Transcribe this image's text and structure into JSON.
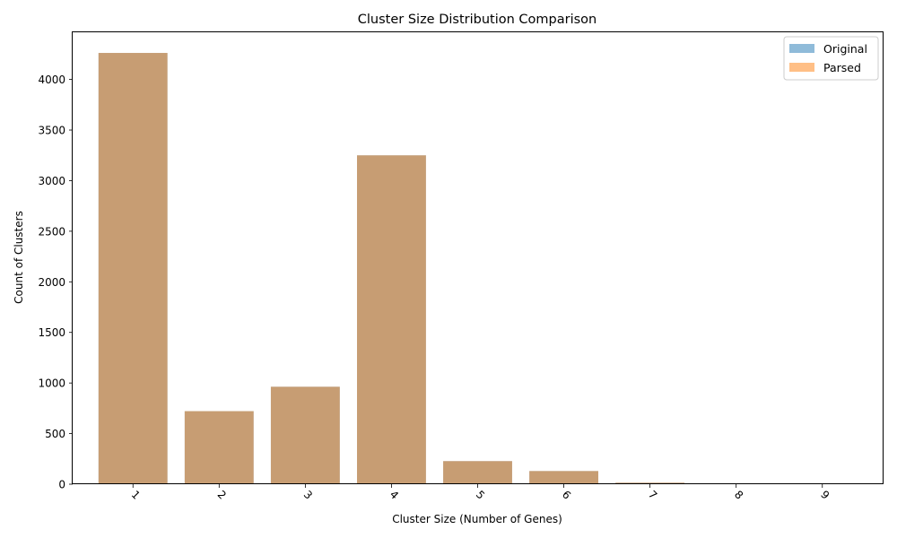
{
  "chart_data": {
    "type": "bar",
    "title": "Cluster Size Distribution Comparison",
    "xlabel": "Cluster Size (Number of Genes)",
    "ylabel": "Count of Clusters",
    "categories": [
      "1",
      "2",
      "3",
      "4",
      "5",
      "6",
      "7",
      "8",
      "9"
    ],
    "series": [
      {
        "name": "Original",
        "color": "#1f77b4",
        "opacity": 0.5,
        "values": [
          4262,
          722,
          963,
          3250,
          228,
          130,
          15,
          5,
          4
        ]
      },
      {
        "name": "Parsed",
        "color": "#ff7f0e",
        "opacity": 0.5,
        "values": [
          4262,
          722,
          963,
          3250,
          228,
          130,
          15,
          5,
          4
        ]
      }
    ],
    "ylim": [
      0,
      4475
    ],
    "yticks": [
      0,
      500,
      1000,
      1500,
      2000,
      2500,
      3000,
      3500,
      4000
    ],
    "xtick_rotation": 45,
    "grid": false,
    "legend_position": "top-right"
  }
}
